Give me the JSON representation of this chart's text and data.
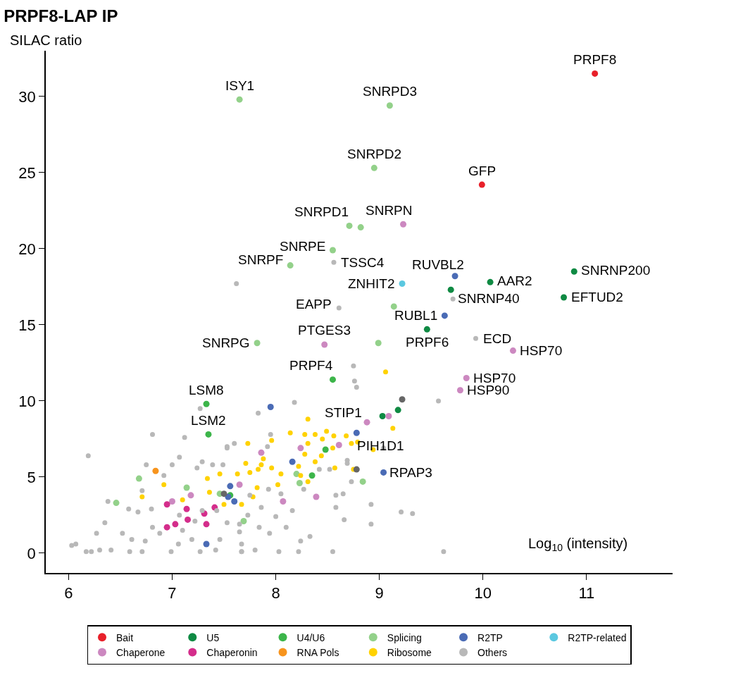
{
  "chart_data": {
    "type": "scatter",
    "title": "PRPF8-LAP IP",
    "ylabel": "SILAC ratio",
    "xlabel": "Log$_{10}$ (intensity)",
    "xlim": [
      5.78,
      11.83
    ],
    "xticks": [
      6,
      7,
      8,
      9,
      10,
      11
    ],
    "ylim": [
      -1.3,
      33
    ],
    "yticks": [
      0,
      5,
      10,
      15,
      20,
      25,
      30
    ],
    "legend": "bottom",
    "marker": "circle",
    "series": [
      {
        "name": "Bait",
        "color": "#e8202a",
        "x": [
          11.08,
          9.99
        ],
        "values": [
          31.5,
          24.2
        ]
      },
      {
        "name": "U5",
        "color": "#0f8a43",
        "x": [
          10.07,
          10.88,
          9.69,
          10.78,
          9.46,
          9.03,
          9.18
        ],
        "values": [
          17.8,
          18.5,
          17.3,
          16.8,
          14.7,
          9.0,
          9.4
        ]
      },
      {
        "name": "U4/U6",
        "color": "#3cb54a",
        "x": [
          8.55,
          7.33,
          7.35,
          7.56,
          8.48,
          8.35
        ],
        "values": [
          11.4,
          9.8,
          7.8,
          3.8,
          6.8,
          5.1
        ]
      },
      {
        "name": "Splicing",
        "color": "#93d18a",
        "x": [
          7.65,
          9.1,
          8.95,
          8.71,
          8.82,
          8.55,
          8.14,
          9.14,
          7.82,
          8.99,
          6.68,
          6.46,
          7.14,
          7.46,
          7.69,
          8.2,
          8.23,
          8.84
        ],
        "values": [
          29.8,
          29.4,
          25.3,
          21.5,
          21.4,
          19.9,
          18.9,
          16.2,
          13.8,
          13.8,
          4.9,
          3.3,
          4.3,
          3.9,
          2.1,
          5.2,
          4.6,
          4.7
        ]
      },
      {
        "name": "R2TP",
        "color": "#4a6bb5",
        "x": [
          9.73,
          9.63,
          8.78,
          9.04,
          7.95,
          7.56,
          7.54,
          7.6,
          7.33,
          8.16
        ],
        "values": [
          18.2,
          15.6,
          7.9,
          5.3,
          9.6,
          4.4,
          3.7,
          3.4,
          0.6,
          6.0
        ]
      },
      {
        "name": "R2TP-related",
        "color": "#5bc8e0",
        "x": [
          9.22
        ],
        "values": [
          17.7
        ]
      },
      {
        "name": "Chaperone",
        "color": "#cc88c0",
        "x": [
          9.23,
          10.29,
          8.47,
          9.84,
          9.78,
          8.88,
          9.09,
          7.0,
          7.18,
          7.65,
          7.86,
          8.24,
          8.61,
          8.07,
          8.39
        ],
        "values": [
          21.6,
          13.3,
          13.7,
          11.5,
          10.7,
          8.6,
          9.0,
          3.4,
          3.8,
          4.5,
          6.6,
          6.9,
          7.1,
          3.4,
          3.7
        ]
      },
      {
        "name": "Chaperonin",
        "color": "#d42d8b",
        "x": [
          7.14,
          7.31,
          7.15,
          7.03,
          6.95,
          7.33,
          7.41,
          6.95
        ],
        "values": [
          2.9,
          2.6,
          2.2,
          1.9,
          1.7,
          1.9,
          3.0,
          3.2
        ]
      },
      {
        "name": "RNA Pols",
        "color": "#f7941d",
        "x": [
          6.84
        ],
        "values": [
          5.4
        ]
      },
      {
        "name": "Ribosome",
        "color": "#ffd200",
        "x": [
          9.06,
          8.31,
          8.49,
          8.14,
          8.28,
          8.38,
          8.45,
          8.56,
          8.68,
          8.73,
          8.79,
          8.94,
          9.13,
          7.96,
          7.73,
          8.31,
          8.55,
          8.44,
          8.28,
          8.38,
          7.88,
          7.86,
          7.71,
          7.83,
          7.96,
          8.22,
          8.05,
          8.24,
          8.31,
          8.02,
          7.82,
          7.75,
          7.63,
          7.46,
          7.78,
          7.67,
          7.5,
          8.57,
          8.75,
          7.34,
          6.92,
          6.71,
          7.1,
          7.36
        ],
        "values": [
          11.9,
          8.8,
          8.0,
          7.9,
          7.8,
          7.8,
          7.5,
          7.7,
          7.7,
          7.2,
          7.3,
          6.8,
          8.2,
          7.4,
          7.2,
          7.2,
          6.9,
          6.4,
          6.5,
          6.0,
          6.2,
          5.8,
          5.9,
          5.5,
          5.6,
          5.7,
          5.2,
          5.1,
          4.7,
          4.5,
          4.3,
          5.3,
          5.2,
          5.2,
          3.7,
          3.2,
          3.2,
          5.6,
          5.5,
          4.9,
          4.5,
          3.7,
          3.5,
          4.0
        ]
      },
      {
        "name": "Others",
        "color": "#b8b8b8",
        "x": [
          8.56,
          7.62,
          9.71,
          8.61,
          9.93,
          6.03,
          6.07,
          6.17,
          6.22,
          6.3,
          6.41,
          6.27,
          6.35,
          6.52,
          6.61,
          6.59,
          6.74,
          6.71,
          6.81,
          6.88,
          6.99,
          7.06,
          7.1,
          7.19,
          7.27,
          7.42,
          7.46,
          7.53,
          7.67,
          7.67,
          7.29,
          7.22,
          7.07,
          6.8,
          6.67,
          6.58,
          6.38,
          6.71,
          6.92,
          6.75,
          7.0,
          6.81,
          7.12,
          7.27,
          6.19,
          7.07,
          7.24,
          7.39,
          7.53,
          7.6,
          7.29,
          7.49,
          7.43,
          7.65,
          7.73,
          8.75,
          8.76,
          8.78,
          8.18,
          7.83,
          7.95,
          7.53,
          7.92,
          9.04,
          8.69,
          8.73,
          8.92,
          9.21,
          9.32,
          8.92,
          8.66,
          8.58,
          8.65,
          8.33,
          8.24,
          8.55,
          8.22,
          8.03,
          7.8,
          7.67,
          8.1,
          7.94,
          7.84,
          7.65,
          8.0,
          8.16,
          7.86,
          7.75,
          7.93,
          8.05,
          8.27,
          8.42,
          8.52,
          8.58,
          8.69,
          9.62,
          9.57
        ],
        "values": [
          19.1,
          17.7,
          16.7,
          16.1,
          14.1,
          0.5,
          0.6,
          0.1,
          0.1,
          0.2,
          0.2,
          1.3,
          2.0,
          1.3,
          0.9,
          0.1,
          0.8,
          0.1,
          1.7,
          1.3,
          0.1,
          0.6,
          1.5,
          0.9,
          0.1,
          0.2,
          0.9,
          2.0,
          0.6,
          0.1,
          2.8,
          2.1,
          2.5,
          2.9,
          2.7,
          2.9,
          3.4,
          4.1,
          5.1,
          5.8,
          5.8,
          7.8,
          7.6,
          9.5,
          6.4,
          6.3,
          5.6,
          5.8,
          6.9,
          7.2,
          6.0,
          5.8,
          2.8,
          1.9,
          2.5,
          12.3,
          11.3,
          10.9,
          9.9,
          9.2,
          7.8,
          7.0,
          7.0,
          6.9,
          6.1,
          4.7,
          3.2,
          2.7,
          2.6,
          1.9,
          2.2,
          3.0,
          3.9,
          1.1,
          0.8,
          0.1,
          0.1,
          0.1,
          0.2,
          0.1,
          1.7,
          1.3,
          1.7,
          1.4,
          2.4,
          2.8,
          3.0,
          3.8,
          4.2,
          3.9,
          4.2,
          5.5,
          5.5,
          3.8,
          5.9,
          0.1,
          10.0
        ]
      },
      {
        "color": "#666666",
        "x": [
          7.5,
          8.78,
          9.22
        ],
        "values": [
          3.9,
          5.5,
          10.1
        ]
      }
    ],
    "annotations": [
      {
        "text": "PRPF8",
        "x": 11.08,
        "y": 31.5
      },
      {
        "text": "GFP",
        "x": 9.99,
        "y": 24.2
      },
      {
        "text": "ISY1",
        "x": 7.65,
        "y": 29.8
      },
      {
        "text": "SNRPD3",
        "x": 9.1,
        "y": 29.4
      },
      {
        "text": "SNRPD2",
        "x": 8.95,
        "y": 25.3
      },
      {
        "text": "SNRPD1",
        "x": 8.71,
        "y": 21.5
      },
      {
        "text": "SNRPN",
        "x": 9.23,
        "y": 21.6
      },
      {
        "text": "SNRPE",
        "x": 8.55,
        "y": 19.9
      },
      {
        "text": "TSSC4",
        "x": 8.56,
        "y": 19.1
      },
      {
        "text": "SNRPF",
        "x": 8.14,
        "y": 18.9
      },
      {
        "text": "ZNHIT2",
        "x": 9.22,
        "y": 17.7
      },
      {
        "text": "RUVBL2",
        "x": 9.73,
        "y": 18.2
      },
      {
        "text": "AAR2",
        "x": 10.07,
        "y": 17.8
      },
      {
        "text": "SNRNP200",
        "x": 10.88,
        "y": 18.5
      },
      {
        "text": "SNRNP40",
        "x": 9.69,
        "y": 17.3
      },
      {
        "text": "EFTUD2",
        "x": 10.78,
        "y": 16.8
      },
      {
        "text": "EAPP",
        "x": 8.61,
        "y": 16.1
      },
      {
        "text": "RUBL1",
        "x": 9.63,
        "y": 15.6
      },
      {
        "text": "PRPF6",
        "x": 9.46,
        "y": 14.7
      },
      {
        "text": "ECD",
        "x": 9.93,
        "y": 14.1
      },
      {
        "text": "HSP70",
        "x": 10.29,
        "y": 13.3
      },
      {
        "text": "SNRPG",
        "x": 7.82,
        "y": 13.8
      },
      {
        "text": "PTGES3",
        "x": 8.47,
        "y": 13.7
      },
      {
        "text": "PRPF4",
        "x": 8.55,
        "y": 11.4
      },
      {
        "text": "HSP70",
        "x": 9.84,
        "y": 11.5
      },
      {
        "text": "HSP90",
        "x": 9.78,
        "y": 10.7
      },
      {
        "text": "LSM8",
        "x": 7.33,
        "y": 9.8
      },
      {
        "text": "LSM2",
        "x": 7.35,
        "y": 7.8
      },
      {
        "text": "STIP1",
        "x": 8.88,
        "y": 8.6
      },
      {
        "text": "PIH1D1",
        "x": 8.78,
        "y": 7.9
      },
      {
        "text": "RPAP3",
        "x": 9.04,
        "y": 5.3
      }
    ]
  }
}
